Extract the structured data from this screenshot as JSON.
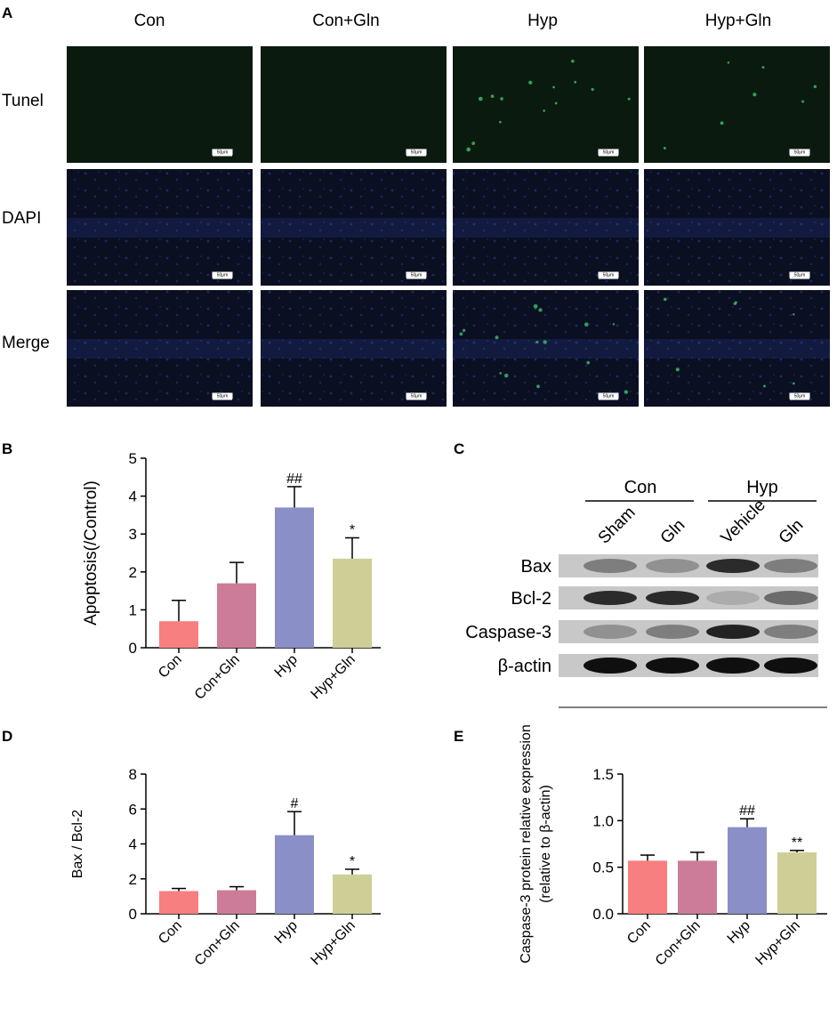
{
  "panel_letters": [
    "A",
    "B",
    "C",
    "D",
    "E"
  ],
  "panel_a": {
    "columns": [
      "Con",
      "Con+Gln",
      "Hyp",
      "Hyp+Gln"
    ],
    "rows": [
      "Tunel",
      "DAPI",
      "Merge"
    ],
    "scale_bar_label": "50μm",
    "colors": {
      "tunel_bg": "#0b1a0e",
      "tunel_signal": "#3fbf6a",
      "dapi_bg": "#0a0f22",
      "dapi_signal": "#3a55c8"
    },
    "green_signal_level": [
      0,
      0,
      1,
      0.5
    ]
  },
  "panel_c": {
    "group_labels": [
      "Con",
      "Hyp"
    ],
    "lane_labels": [
      "Sham",
      "Gln",
      "Vehicle",
      "Gln"
    ],
    "bands": [
      {
        "label": "Bax",
        "intensity": [
          0.4,
          0.3,
          0.85,
          0.4
        ]
      },
      {
        "label": "Bcl-2",
        "intensity": [
          0.85,
          0.85,
          0.15,
          0.5
        ]
      },
      {
        "label": "Caspase-3",
        "intensity": [
          0.3,
          0.4,
          0.9,
          0.4
        ]
      },
      {
        "label": "β-actin",
        "intensity": [
          1.0,
          1.0,
          1.0,
          1.0
        ]
      }
    ]
  },
  "chart_data": [
    {
      "panel": "B",
      "type": "bar",
      "categories": [
        "Con",
        "Con+Gln",
        "Hyp",
        "Hyp+Gln"
      ],
      "values": [
        0.7,
        1.7,
        3.7,
        2.35
      ],
      "errors": [
        0.55,
        0.55,
        0.55,
        0.55
      ],
      "significance": [
        "",
        "",
        "##",
        "*"
      ],
      "ylabel": "Apoptosis(/Control)",
      "ylim": [
        0,
        5
      ],
      "yticks": [
        "0",
        "1",
        "2",
        "3",
        "4",
        "5"
      ],
      "colors": [
        "#f77f7f",
        "#cc7c99",
        "#8a8fc8",
        "#cdcf96"
      ]
    },
    {
      "panel": "D",
      "type": "bar",
      "categories": [
        "Con",
        "Con+Gln",
        "Hyp",
        "Hyp+Gln"
      ],
      "values": [
        1.3,
        1.35,
        4.5,
        2.25
      ],
      "errors": [
        0.15,
        0.2,
        1.35,
        0.3
      ],
      "significance": [
        "",
        "",
        "#",
        "*"
      ],
      "ylabel": "Bax / Bcl-2",
      "ylim": [
        0,
        8
      ],
      "yticks": [
        "0",
        "2",
        "4",
        "6",
        "8"
      ],
      "colors": [
        "#f77f7f",
        "#cc7c99",
        "#8a8fc8",
        "#cdcf96"
      ]
    },
    {
      "panel": "E",
      "type": "bar",
      "categories": [
        "Con",
        "Con+Gln",
        "Hyp",
        "Hyp+Gln"
      ],
      "values": [
        0.57,
        0.57,
        0.93,
        0.66
      ],
      "errors": [
        0.06,
        0.09,
        0.09,
        0.02
      ],
      "significance": [
        "",
        "",
        "##",
        "**"
      ],
      "ylabel": "Caspase-3 protein relative expression",
      "ylabel2": "(relative to β-actin)",
      "ylim": [
        0,
        1.5
      ],
      "yticks": [
        "0.0",
        "0.5",
        "1.0",
        "1.5"
      ],
      "colors": [
        "#f77f7f",
        "#cc7c99",
        "#8a8fc8",
        "#cdcf96"
      ]
    }
  ]
}
